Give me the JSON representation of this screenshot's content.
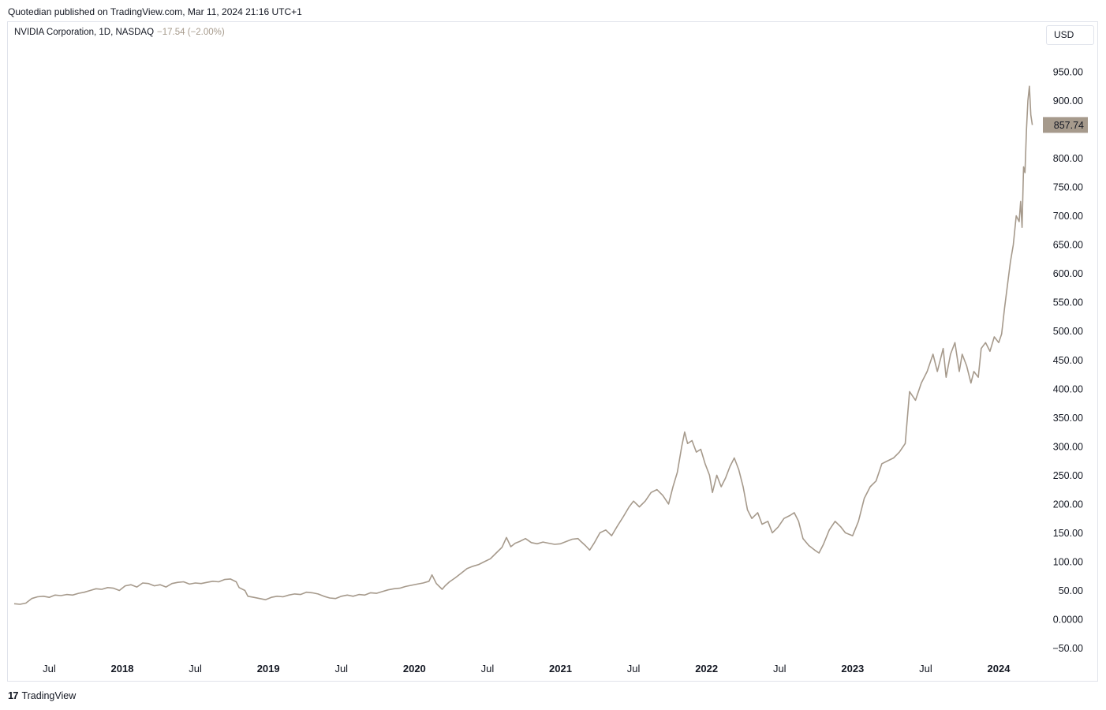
{
  "header": {
    "published_text": "Quotedian published on TradingView.com, Mar 11, 2024 21:16 UTC+1"
  },
  "legend": {
    "symbol_text": "NVIDIA Corporation, 1D, NASDAQ",
    "change_text": "−17.54 (−2.00%)"
  },
  "currency_button": {
    "label": "USD"
  },
  "footer": {
    "logo_mark": "17",
    "brand": "TradingView"
  },
  "colors": {
    "line": "#a69a8c",
    "last_price_bg": "#a69a8c",
    "frame": "#e0e3eb"
  },
  "chart_data": {
    "type": "line",
    "title": "",
    "xlabel": "",
    "ylabel": "",
    "ylim": [
      -55,
      985
    ],
    "xlim": [
      2017.26,
      2024.52
    ],
    "grid": false,
    "last_price": 857.74,
    "last_price_label": "857.74",
    "y_ticks": [
      {
        "value": 950,
        "label": "950.00"
      },
      {
        "value": 900,
        "label": "900.00"
      },
      {
        "value": 800,
        "label": "800.00"
      },
      {
        "value": 750,
        "label": "750.00"
      },
      {
        "value": 700,
        "label": "700.00"
      },
      {
        "value": 650,
        "label": "650.00"
      },
      {
        "value": 600,
        "label": "600.00"
      },
      {
        "value": 550,
        "label": "550.00"
      },
      {
        "value": 500,
        "label": "500.00"
      },
      {
        "value": 450,
        "label": "450.00"
      },
      {
        "value": 400,
        "label": "400.00"
      },
      {
        "value": 350,
        "label": "350.00"
      },
      {
        "value": 300,
        "label": "300.00"
      },
      {
        "value": 250,
        "label": "250.00"
      },
      {
        "value": 200,
        "label": "200.00"
      },
      {
        "value": 150,
        "label": "150.00"
      },
      {
        "value": 100,
        "label": "100.00"
      },
      {
        "value": 50,
        "label": "50.00"
      },
      {
        "value": 0,
        "label": "0.0000"
      },
      {
        "value": -50,
        "label": "−50.00"
      }
    ],
    "x_ticks": [
      {
        "value": 2017.5,
        "label": "Jul",
        "year": false
      },
      {
        "value": 2018.0,
        "label": "2018",
        "year": true
      },
      {
        "value": 2018.5,
        "label": "Jul",
        "year": false
      },
      {
        "value": 2019.0,
        "label": "2019",
        "year": true
      },
      {
        "value": 2019.5,
        "label": "Jul",
        "year": false
      },
      {
        "value": 2020.0,
        "label": "2020",
        "year": true
      },
      {
        "value": 2020.5,
        "label": "Jul",
        "year": false
      },
      {
        "value": 2021.0,
        "label": "2021",
        "year": true
      },
      {
        "value": 2021.5,
        "label": "Jul",
        "year": false
      },
      {
        "value": 2022.0,
        "label": "2022",
        "year": true
      },
      {
        "value": 2022.5,
        "label": "Jul",
        "year": false
      },
      {
        "value": 2023.0,
        "label": "2023",
        "year": true
      },
      {
        "value": 2023.5,
        "label": "Jul",
        "year": false
      },
      {
        "value": 2024.0,
        "label": "2024",
        "year": true
      }
    ],
    "series": [
      {
        "values": [
          [
            2017.26,
            27
          ],
          [
            2017.3,
            26
          ],
          [
            2017.34,
            28
          ],
          [
            2017.38,
            36
          ],
          [
            2017.42,
            39
          ],
          [
            2017.46,
            40
          ],
          [
            2017.5,
            38
          ],
          [
            2017.54,
            42
          ],
          [
            2017.58,
            41
          ],
          [
            2017.62,
            43
          ],
          [
            2017.66,
            42
          ],
          [
            2017.7,
            45
          ],
          [
            2017.74,
            47
          ],
          [
            2017.78,
            50
          ],
          [
            2017.82,
            53
          ],
          [
            2017.86,
            52
          ],
          [
            2017.9,
            55
          ],
          [
            2017.94,
            54
          ],
          [
            2017.98,
            50
          ],
          [
            2018.02,
            58
          ],
          [
            2018.06,
            60
          ],
          [
            2018.1,
            56
          ],
          [
            2018.14,
            63
          ],
          [
            2018.18,
            62
          ],
          [
            2018.22,
            58
          ],
          [
            2018.26,
            60
          ],
          [
            2018.3,
            56
          ],
          [
            2018.34,
            62
          ],
          [
            2018.38,
            64
          ],
          [
            2018.42,
            65
          ],
          [
            2018.46,
            61
          ],
          [
            2018.5,
            63
          ],
          [
            2018.54,
            62
          ],
          [
            2018.58,
            64
          ],
          [
            2018.62,
            66
          ],
          [
            2018.66,
            65
          ],
          [
            2018.7,
            69
          ],
          [
            2018.74,
            70
          ],
          [
            2018.78,
            65
          ],
          [
            2018.8,
            55
          ],
          [
            2018.84,
            50
          ],
          [
            2018.86,
            40
          ],
          [
            2018.9,
            38
          ],
          [
            2018.94,
            36
          ],
          [
            2018.98,
            34
          ],
          [
            2019.02,
            38
          ],
          [
            2019.06,
            40
          ],
          [
            2019.1,
            39
          ],
          [
            2019.14,
            42
          ],
          [
            2019.18,
            44
          ],
          [
            2019.22,
            43
          ],
          [
            2019.26,
            47
          ],
          [
            2019.3,
            46
          ],
          [
            2019.34,
            44
          ],
          [
            2019.38,
            40
          ],
          [
            2019.42,
            37
          ],
          [
            2019.46,
            36
          ],
          [
            2019.5,
            40
          ],
          [
            2019.54,
            42
          ],
          [
            2019.58,
            40
          ],
          [
            2019.62,
            43
          ],
          [
            2019.66,
            42
          ],
          [
            2019.7,
            46
          ],
          [
            2019.74,
            45
          ],
          [
            2019.78,
            48
          ],
          [
            2019.82,
            51
          ],
          [
            2019.86,
            53
          ],
          [
            2019.9,
            54
          ],
          [
            2019.94,
            57
          ],
          [
            2019.98,
            59
          ],
          [
            2020.02,
            61
          ],
          [
            2020.06,
            63
          ],
          [
            2020.1,
            66
          ],
          [
            2020.12,
            77
          ],
          [
            2020.15,
            62
          ],
          [
            2020.19,
            52
          ],
          [
            2020.21,
            58
          ],
          [
            2020.24,
            65
          ],
          [
            2020.28,
            72
          ],
          [
            2020.32,
            80
          ],
          [
            2020.36,
            88
          ],
          [
            2020.4,
            92
          ],
          [
            2020.44,
            95
          ],
          [
            2020.48,
            100
          ],
          [
            2020.52,
            105
          ],
          [
            2020.56,
            115
          ],
          [
            2020.6,
            125
          ],
          [
            2020.63,
            142
          ],
          [
            2020.66,
            126
          ],
          [
            2020.69,
            132
          ],
          [
            2020.72,
            135
          ],
          [
            2020.76,
            140
          ],
          [
            2020.8,
            133
          ],
          [
            2020.84,
            131
          ],
          [
            2020.88,
            134
          ],
          [
            2020.92,
            132
          ],
          [
            2020.96,
            130
          ],
          [
            2021.0,
            131
          ],
          [
            2021.04,
            135
          ],
          [
            2021.08,
            139
          ],
          [
            2021.12,
            140
          ],
          [
            2021.14,
            135
          ],
          [
            2021.17,
            128
          ],
          [
            2021.2,
            120
          ],
          [
            2021.23,
            132
          ],
          [
            2021.27,
            150
          ],
          [
            2021.31,
            155
          ],
          [
            2021.35,
            145
          ],
          [
            2021.39,
            162
          ],
          [
            2021.43,
            178
          ],
          [
            2021.47,
            195
          ],
          [
            2021.5,
            205
          ],
          [
            2021.54,
            195
          ],
          [
            2021.58,
            205
          ],
          [
            2021.62,
            220
          ],
          [
            2021.66,
            225
          ],
          [
            2021.7,
            215
          ],
          [
            2021.74,
            200
          ],
          [
            2021.77,
            230
          ],
          [
            2021.8,
            255
          ],
          [
            2021.83,
            300
          ],
          [
            2021.85,
            325
          ],
          [
            2021.87,
            305
          ],
          [
            2021.9,
            310
          ],
          [
            2021.93,
            290
          ],
          [
            2021.96,
            295
          ],
          [
            2021.99,
            270
          ],
          [
            2022.02,
            250
          ],
          [
            2022.04,
            220
          ],
          [
            2022.07,
            250
          ],
          [
            2022.1,
            230
          ],
          [
            2022.13,
            245
          ],
          [
            2022.16,
            265
          ],
          [
            2022.19,
            280
          ],
          [
            2022.22,
            260
          ],
          [
            2022.25,
            230
          ],
          [
            2022.28,
            190
          ],
          [
            2022.31,
            175
          ],
          [
            2022.35,
            185
          ],
          [
            2022.38,
            165
          ],
          [
            2022.42,
            170
          ],
          [
            2022.45,
            150
          ],
          [
            2022.49,
            160
          ],
          [
            2022.53,
            175
          ],
          [
            2022.57,
            180
          ],
          [
            2022.6,
            185
          ],
          [
            2022.63,
            170
          ],
          [
            2022.66,
            140
          ],
          [
            2022.7,
            128
          ],
          [
            2022.74,
            120
          ],
          [
            2022.77,
            115
          ],
          [
            2022.8,
            130
          ],
          [
            2022.84,
            155
          ],
          [
            2022.88,
            170
          ],
          [
            2022.92,
            160
          ],
          [
            2022.95,
            150
          ],
          [
            2023.0,
            145
          ],
          [
            2023.04,
            170
          ],
          [
            2023.08,
            210
          ],
          [
            2023.12,
            230
          ],
          [
            2023.16,
            240
          ],
          [
            2023.2,
            270
          ],
          [
            2023.24,
            275
          ],
          [
            2023.28,
            280
          ],
          [
            2023.32,
            290
          ],
          [
            2023.36,
            305
          ],
          [
            2023.39,
            395
          ],
          [
            2023.43,
            380
          ],
          [
            2023.47,
            410
          ],
          [
            2023.51,
            430
          ],
          [
            2023.55,
            460
          ],
          [
            2023.58,
            430
          ],
          [
            2023.62,
            470
          ],
          [
            2023.64,
            420
          ],
          [
            2023.67,
            460
          ],
          [
            2023.7,
            480
          ],
          [
            2023.73,
            430
          ],
          [
            2023.75,
            460
          ],
          [
            2023.78,
            440
          ],
          [
            2023.81,
            410
          ],
          [
            2023.83,
            430
          ],
          [
            2023.86,
            420
          ],
          [
            2023.88,
            470
          ],
          [
            2023.91,
            480
          ],
          [
            2023.94,
            465
          ],
          [
            2023.97,
            490
          ],
          [
            2024.0,
            480
          ],
          [
            2024.02,
            495
          ],
          [
            2024.04,
            540
          ],
          [
            2024.06,
            580
          ],
          [
            2024.08,
            620
          ],
          [
            2024.1,
            650
          ],
          [
            2024.12,
            700
          ],
          [
            2024.14,
            690
          ],
          [
            2024.15,
            725
          ],
          [
            2024.16,
            680
          ],
          [
            2024.17,
            785
          ],
          [
            2024.18,
            775
          ],
          [
            2024.19,
            850
          ],
          [
            2024.2,
            900
          ],
          [
            2024.21,
            925
          ],
          [
            2024.22,
            875
          ],
          [
            2024.23,
            857.74
          ]
        ]
      }
    ]
  }
}
